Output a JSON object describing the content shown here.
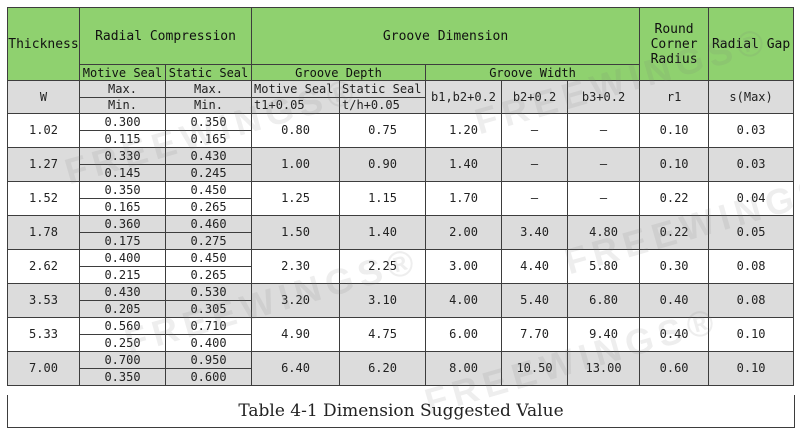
{
  "headers": {
    "thickness": "Thickness",
    "radial_compression": "Radial Compression",
    "groove_dimension": "Groove Dimension",
    "round_corner_radius": "Round Corner Radius",
    "radial_gap": "Radial Gap",
    "motive_seal": "Motive Seal",
    "static_seal": "Static Seal",
    "groove_depth": "Groove Depth",
    "groove_width": "Groove Width"
  },
  "subheaders": {
    "w": "W",
    "max": "Max.",
    "min": "Min.",
    "motive_seal": "Motive Seal",
    "static_seal": "Static Seal",
    "t1": "t1+0.05",
    "th": "t/h+0.05",
    "b1b2": "b1,b2+0.2",
    "b2": "b2+0.2",
    "b3": "b3+0.2",
    "r1": "r1",
    "s_max": "s(Max)"
  },
  "rows": [
    {
      "w": "1.02",
      "motive_max": "0.300",
      "motive_min": "0.115",
      "static_max": "0.350",
      "static_min": "0.165",
      "t1": "0.80",
      "th": "0.75",
      "b1b2": "1.20",
      "b2": "—",
      "b3": "—",
      "r1": "0.10",
      "s": "0.03"
    },
    {
      "w": "1.27",
      "motive_max": "0.330",
      "motive_min": "0.145",
      "static_max": "0.430",
      "static_min": "0.245",
      "t1": "1.00",
      "th": "0.90",
      "b1b2": "1.40",
      "b2": "—",
      "b3": "—",
      "r1": "0.10",
      "s": "0.03"
    },
    {
      "w": "1.52",
      "motive_max": "0.350",
      "motive_min": "0.165",
      "static_max": "0.450",
      "static_min": "0.265",
      "t1": "1.25",
      "th": "1.15",
      "b1b2": "1.70",
      "b2": "—",
      "b3": "—",
      "r1": "0.22",
      "s": "0.04"
    },
    {
      "w": "1.78",
      "motive_max": "0.360",
      "motive_min": "0.175",
      "static_max": "0.460",
      "static_min": "0.275",
      "t1": "1.50",
      "th": "1.40",
      "b1b2": "2.00",
      "b2": "3.40",
      "b3": "4.80",
      "r1": "0.22",
      "s": "0.05"
    },
    {
      "w": "2.62",
      "motive_max": "0.400",
      "motive_min": "0.215",
      "static_max": "0.450",
      "static_min": "0.265",
      "t1": "2.30",
      "th": "2.25",
      "b1b2": "3.00",
      "b2": "4.40",
      "b3": "5.80",
      "r1": "0.30",
      "s": "0.08"
    },
    {
      "w": "3.53",
      "motive_max": "0.430",
      "motive_min": "0.205",
      "static_max": "0.530",
      "static_min": "0.305",
      "t1": "3.20",
      "th": "3.10",
      "b1b2": "4.00",
      "b2": "5.40",
      "b3": "6.80",
      "r1": "0.40",
      "s": "0.08"
    },
    {
      "w": "5.33",
      "motive_max": "0.560",
      "motive_min": "0.250",
      "static_max": "0.710",
      "static_min": "0.400",
      "t1": "4.90",
      "th": "4.75",
      "b1b2": "6.00",
      "b2": "7.70",
      "b3": "9.40",
      "r1": "0.40",
      "s": "0.10"
    },
    {
      "w": "7.00",
      "motive_max": "0.700",
      "motive_min": "0.350",
      "static_max": "0.950",
      "static_min": "0.600",
      "t1": "6.40",
      "th": "6.20",
      "b1b2": "8.00",
      "b2": "10.50",
      "b3": "13.00",
      "r1": "0.60",
      "s": "0.10"
    }
  ],
  "caption": "Table 4-1 Dimension Suggested Value",
  "watermark": "FREEWINGS®",
  "colors": {
    "header_bg": "#8fd16f",
    "shaded_row": "#dcdcdc",
    "border": "#3d3d3d"
  }
}
